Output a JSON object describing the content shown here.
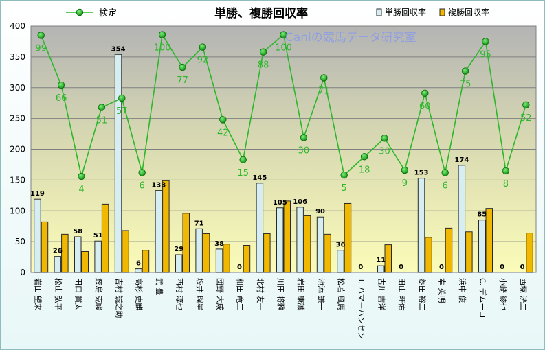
{
  "chart_data": {
    "type": "bar",
    "title": "単勝、複勝回収率",
    "watermark": "Caniの競馬データ研究室",
    "ylim": [
      0,
      400
    ],
    "yticks": [
      0,
      50,
      100,
      150,
      200,
      250,
      300,
      350,
      400
    ],
    "categories": [
      "岩田 望来",
      "松山 弘平",
      "田口 貫太",
      "鮫島 克駿",
      "吉村 誠之助",
      "高杉 吏麒",
      "武 豊",
      "西村 淳也",
      "坂井 瑠星",
      "団野 大成",
      "和田 竜二",
      "北村 友一",
      "川田 将雅",
      "岩田 康誠",
      "池添 謙一",
      "松若 風馬",
      "T. ハマーハンセン",
      "古川 吉洋",
      "田山 旺佑",
      "菱田 裕二",
      "幸 英明",
      "浜中 俊",
      "C. デムーロ",
      "小崎 綾也",
      "西塚 洸二"
    ],
    "series": [
      {
        "name": "単勝回収率",
        "kind": "bar",
        "color": "#d6eef2",
        "values": [
          119,
          26,
          58,
          51,
          354,
          6,
          133,
          29,
          71,
          38,
          0,
          145,
          105,
          106,
          90,
          36,
          0,
          11,
          0,
          153,
          0,
          174,
          85,
          0,
          0
        ]
      },
      {
        "name": "複勝回収率",
        "kind": "bar",
        "color": "#f0b800",
        "values": [
          82,
          62,
          34,
          111,
          68,
          36,
          149,
          96,
          63,
          46,
          44,
          63,
          116,
          92,
          62,
          112,
          0,
          45,
          0,
          57,
          72,
          66,
          104,
          0,
          64
        ]
      },
      {
        "name": "検定",
        "kind": "line",
        "color": "#2ab82a",
        "labels": [
          99,
          66,
          4,
          51,
          57,
          6,
          100,
          77,
          92,
          42,
          15,
          88,
          100,
          30,
          71,
          5,
          18,
          30,
          9,
          60,
          6,
          75,
          95,
          8,
          52
        ]
      }
    ]
  }
}
